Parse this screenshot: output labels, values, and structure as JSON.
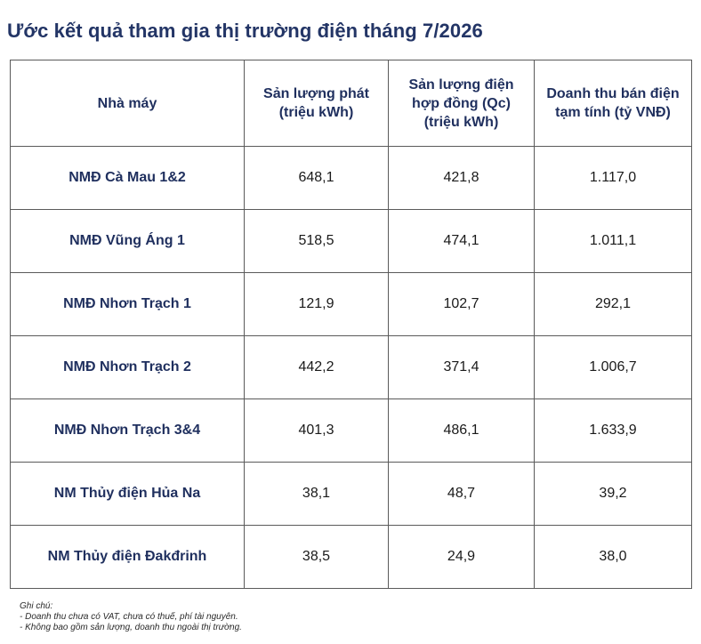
{
  "title": "Ước kết quả tham gia thị trường điện tháng 7/2026",
  "table": {
    "headers": [
      "Nhà máy",
      "Sản lượng phát (triệu kWh)",
      "Sản lượng điện hợp đồng (Qc) (triệu kWh)",
      "Doanh thu bán điện tạm tính (tỷ VNĐ)"
    ],
    "rows": [
      [
        "NMĐ Cà Mau 1&2",
        "648,1",
        "421,8",
        "1.117,0"
      ],
      [
        "NMĐ Vũng Áng 1",
        "518,5",
        "474,1",
        "1.011,1"
      ],
      [
        "NMĐ Nhơn Trạch 1",
        "121,9",
        "102,7",
        "292,1"
      ],
      [
        "NMĐ Nhơn Trạch 2",
        "442,2",
        "371,4",
        "1.006,7"
      ],
      [
        "NMĐ Nhơn Trạch 3&4",
        "401,3",
        "486,1",
        "1.633,9"
      ],
      [
        "NM Thủy điện Hủa Na",
        "38,1",
        "48,7",
        "39,2"
      ],
      [
        "NM Thủy điện Đakđrinh",
        "38,5",
        "24,9",
        "38,0"
      ]
    ]
  },
  "notes": {
    "heading": "Ghi chú:",
    "lines": [
      "- Doanh thu chưa có VAT, chưa có thuế, phí tài nguyên.",
      "- Không bao gồm sản lượng, doanh thu ngoài thị trường."
    ]
  }
}
